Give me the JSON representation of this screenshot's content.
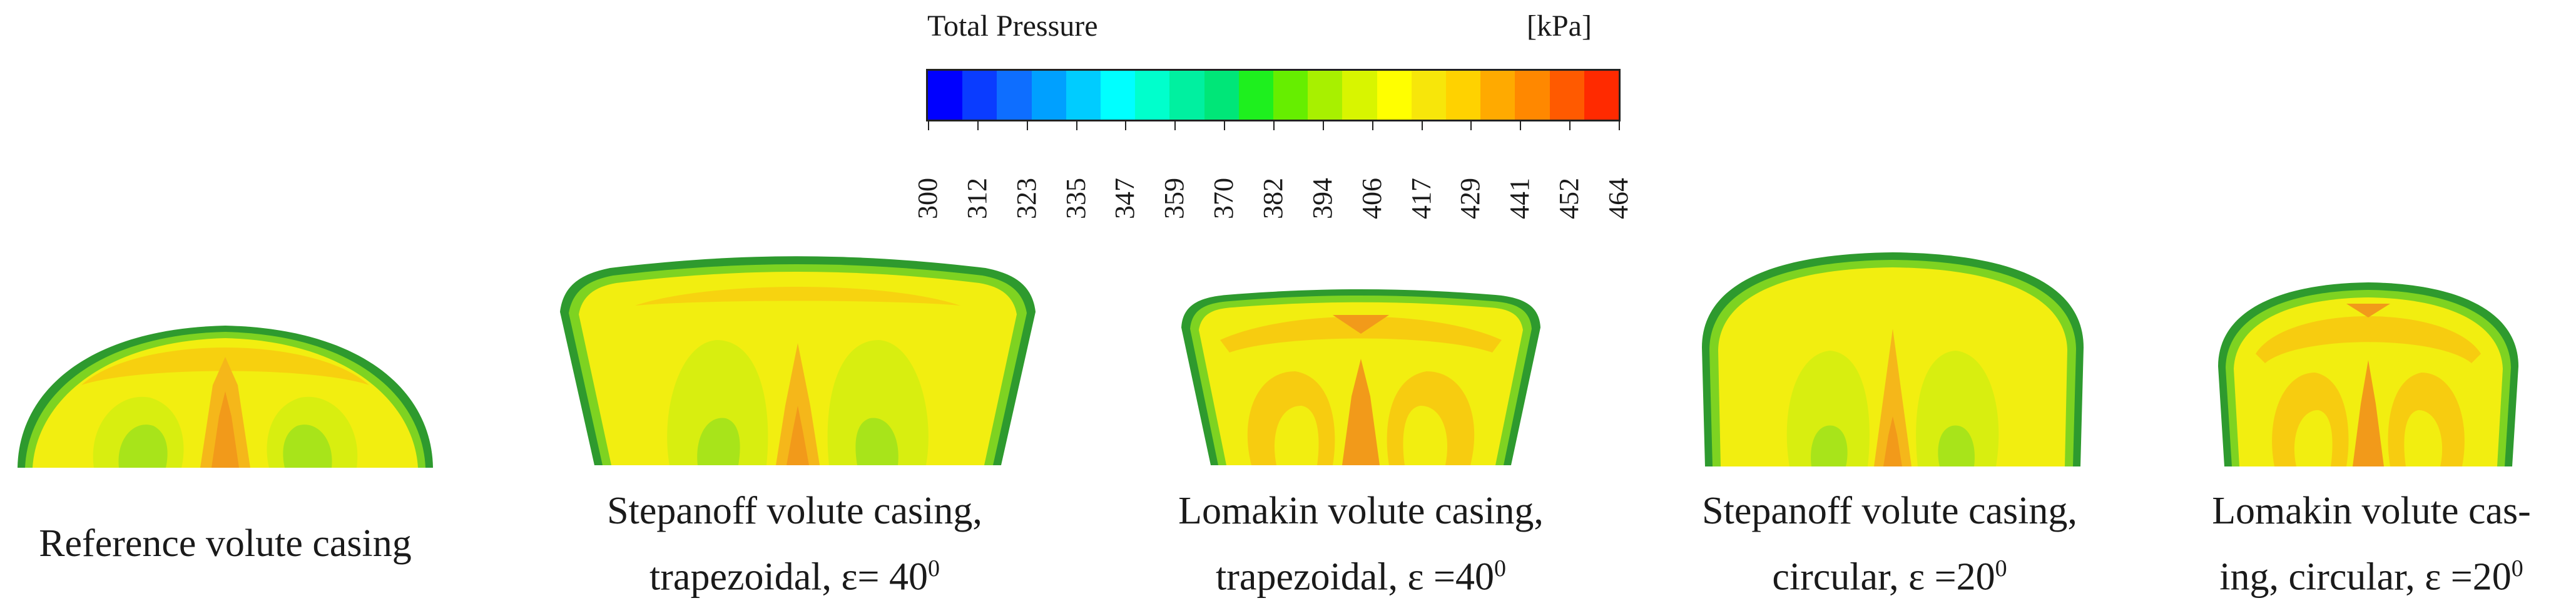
{
  "colorbar": {
    "title": "Total Pressure",
    "unit": "[kPa]",
    "tick_labels": [
      "300",
      "312",
      "323",
      "335",
      "347",
      "359",
      "370",
      "382",
      "394",
      "406",
      "417",
      "429",
      "441",
      "452",
      "464"
    ],
    "colors": [
      "#0000ff",
      "#0a3cff",
      "#0e6eff",
      "#00a0ff",
      "#00ccff",
      "#00ffff",
      "#00ffcc",
      "#00f0a0",
      "#00e678",
      "#1ef01e",
      "#66ee00",
      "#a8f000",
      "#d8f500",
      "#ffff00",
      "#f7e60a",
      "#ffd200",
      "#ffaa00",
      "#ff8800",
      "#ff5a00",
      "#ff2a00"
    ]
  },
  "panels": [
    {
      "caption_line1": "Reference volute casing",
      "caption_line2": "",
      "exponent": ""
    },
    {
      "caption_line1": "Stepanoff volute casing,",
      "caption_line2": "trapezoidal, ε= 40",
      "exponent": "0"
    },
    {
      "caption_line1": "Lomakin volute casing,",
      "caption_line2": "trapezoidal, ε =40",
      "exponent": "0"
    },
    {
      "caption_line1": "Stepanoff volute casing,",
      "caption_line2": "circular, ε =20",
      "exponent": "0"
    },
    {
      "caption_line1": "Lomakin volute cas-",
      "caption_line2": "ing, circular, ε =20",
      "exponent": "0"
    }
  ]
}
